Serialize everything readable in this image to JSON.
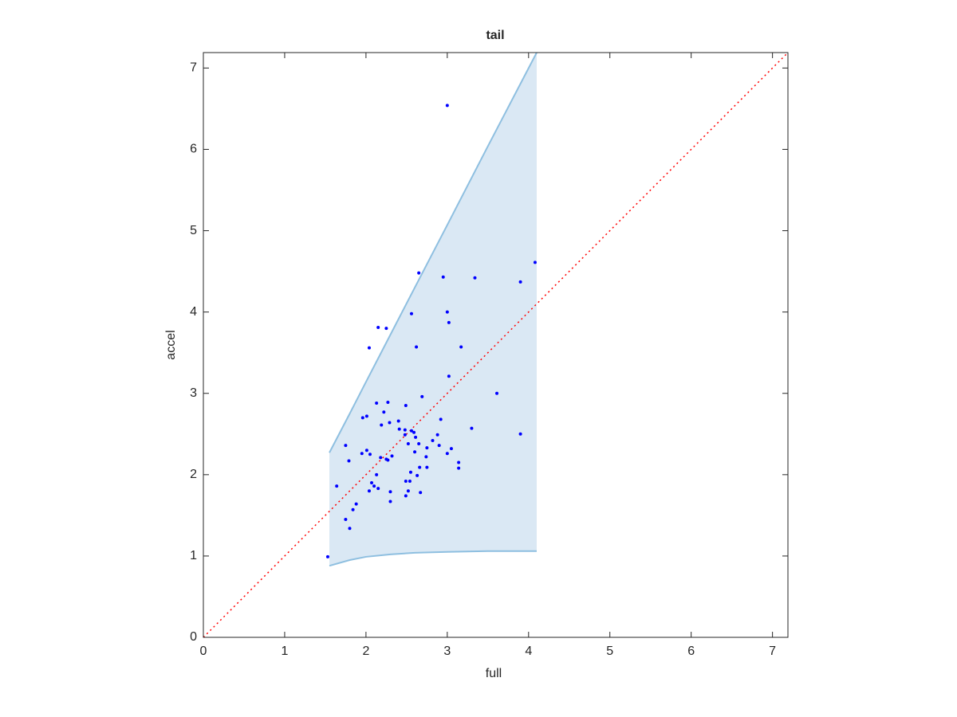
{
  "chart_data": {
    "type": "scatter",
    "title": "tail",
    "xlabel": "full",
    "ylabel": "accel",
    "xlim": [
      0,
      7.19
    ],
    "ylim": [
      0,
      7.19
    ],
    "xticks": [
      0,
      1,
      2,
      3,
      4,
      5,
      6,
      7
    ],
    "yticks": [
      0,
      1,
      2,
      3,
      4,
      5,
      6,
      7
    ],
    "diagonal_color": "#ff0000",
    "band": {
      "fill": "#dae8f4",
      "edge": "#8ebfe0",
      "x": [
        1.55,
        1.8,
        2.0,
        2.3,
        2.6,
        3.0,
        3.5,
        4.1
      ],
      "upper": [
        2.27,
        2.75,
        3.14,
        3.72,
        4.3,
        5.07,
        6.04,
        7.19
      ],
      "lower": [
        0.88,
        0.95,
        0.99,
        1.02,
        1.04,
        1.05,
        1.06,
        1.06
      ]
    },
    "series": [
      {
        "color": "#0000ff",
        "x": [
          1.53,
          3.0,
          4.08,
          2.65,
          2.95,
          3.34,
          3.9,
          2.56,
          3.0,
          3.02,
          2.15,
          2.25,
          2.04,
          2.62,
          3.17,
          3.02,
          3.61,
          2.69,
          2.13,
          2.27,
          2.49,
          2.22,
          2.01,
          1.96,
          2.92,
          2.4,
          2.29,
          2.19,
          3.3,
          2.48,
          2.56,
          2.41,
          2.59,
          2.48,
          3.9,
          2.88,
          2.61,
          2.82,
          2.52,
          2.65,
          2.9,
          1.75,
          2.75,
          3.05,
          2.6,
          2.01,
          1.95,
          2.05,
          3.0,
          2.32,
          2.74,
          2.18,
          2.25,
          2.27,
          1.79,
          3.14,
          2.66,
          2.75,
          3.14,
          2.55,
          2.63,
          2.13,
          2.54,
          2.49,
          2.07,
          2.1,
          1.64,
          2.15,
          2.04,
          2.52,
          2.3,
          2.67,
          2.49,
          2.3,
          1.88,
          1.84,
          1.75,
          1.8
        ],
        "values": [
          0.99,
          6.54,
          4.61,
          4.48,
          4.43,
          4.42,
          4.37,
          3.98,
          4.0,
          3.87,
          3.81,
          3.8,
          3.56,
          3.57,
          3.57,
          3.21,
          3.0,
          2.96,
          2.88,
          2.89,
          2.85,
          2.77,
          2.72,
          2.7,
          2.68,
          2.66,
          2.64,
          2.61,
          2.57,
          2.55,
          2.54,
          2.56,
          2.52,
          2.49,
          2.5,
          2.49,
          2.46,
          2.42,
          2.38,
          2.38,
          2.36,
          2.36,
          2.33,
          2.32,
          2.28,
          2.3,
          2.26,
          2.25,
          2.26,
          2.23,
          2.22,
          2.21,
          2.19,
          2.18,
          2.17,
          2.15,
          2.09,
          2.09,
          2.08,
          2.03,
          1.99,
          2.0,
          1.92,
          1.92,
          1.9,
          1.86,
          1.86,
          1.83,
          1.8,
          1.8,
          1.79,
          1.78,
          1.74,
          1.67,
          1.64,
          1.57,
          1.45,
          1.34
        ]
      }
    ]
  }
}
